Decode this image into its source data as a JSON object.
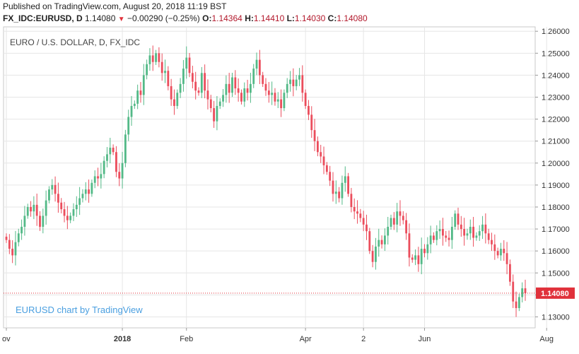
{
  "header": {
    "published": "Published on TradingView.com, August 20, 2018 11:19 BST",
    "symbol": "FX_IDC:EURUSD, D",
    "last": "1.14080",
    "change": "−0.00290 (−0.25%)",
    "o_label": "O:",
    "o": "1.14364",
    "h_label": "H:",
    "h": "1.14410",
    "l_label": "L:",
    "l": "1.14030",
    "c_label": "C:",
    "c": "1.14080"
  },
  "colors": {
    "up": "#53b987",
    "down": "#eb4d5c",
    "grid": "#e6e6e6",
    "price_tag": "#e0313b",
    "watermark": "#4a9fe0"
  },
  "chart_data": {
    "type": "candlestick",
    "title": "EURO / U.S. DOLLAR, D, FX_IDC",
    "watermark": "EURUSD chart by TradingView",
    "ylim": [
      1.125,
      1.262
    ],
    "y_ticks": [
      "1.26000",
      "1.25000",
      "1.24000",
      "1.23000",
      "1.22000",
      "1.21000",
      "1.20000",
      "1.19000",
      "1.18000",
      "1.17000",
      "1.16000",
      "1.15000",
      "1.14000",
      "1.13000"
    ],
    "x_ticks": [
      {
        "label": "ov",
        "i": 0
      },
      {
        "label": "2018",
        "i": 38
      },
      {
        "label": "Feb",
        "i": 59
      },
      {
        "label": "Apr",
        "i": 98
      },
      {
        "label": "2",
        "i": 117
      },
      {
        "label": "Jun",
        "i": 137
      },
      {
        "label": "Aug",
        "i": 177
      }
    ],
    "last_price": 1.1408,
    "last_price_label": "1.14080",
    "close": [
      1.165,
      1.161,
      1.158,
      1.164,
      1.168,
      1.171,
      1.176,
      1.18,
      1.178,
      1.181,
      1.176,
      1.171,
      1.176,
      1.183,
      1.188,
      1.19,
      1.186,
      1.182,
      1.179,
      1.176,
      1.174,
      1.176,
      1.179,
      1.181,
      1.184,
      1.186,
      1.188,
      1.186,
      1.191,
      1.194,
      1.193,
      1.195,
      1.201,
      1.204,
      1.207,
      1.205,
      1.196,
      1.193,
      1.2,
      1.213,
      1.221,
      1.226,
      1.227,
      1.233,
      1.231,
      1.24,
      1.245,
      1.249,
      1.246,
      1.25,
      1.246,
      1.241,
      1.242,
      1.235,
      1.229,
      1.226,
      1.232,
      1.236,
      1.243,
      1.248,
      1.241,
      1.237,
      1.233,
      1.232,
      1.241,
      1.233,
      1.229,
      1.225,
      1.219,
      1.226,
      1.228,
      1.231,
      1.236,
      1.232,
      1.239,
      1.234,
      1.232,
      1.228,
      1.234,
      1.232,
      1.236,
      1.243,
      1.247,
      1.24,
      1.236,
      1.233,
      1.231,
      1.232,
      1.228,
      1.229,
      1.225,
      1.232,
      1.236,
      1.238,
      1.235,
      1.238,
      1.24,
      1.232,
      1.226,
      1.222,
      1.215,
      1.21,
      1.205,
      1.203,
      1.199,
      1.196,
      1.192,
      1.186,
      1.187,
      1.184,
      1.191,
      1.194,
      1.186,
      1.18,
      1.178,
      1.177,
      1.175,
      1.172,
      1.169,
      1.16,
      1.155,
      1.162,
      1.165,
      1.163,
      1.167,
      1.171,
      1.175,
      1.172,
      1.178,
      1.176,
      1.174,
      1.168,
      1.157,
      1.156,
      1.158,
      1.154,
      1.161,
      1.159,
      1.163,
      1.167,
      1.165,
      1.169,
      1.17,
      1.167,
      1.166,
      1.165,
      1.171,
      1.177,
      1.172,
      1.17,
      1.167,
      1.168,
      1.171,
      1.166,
      1.167,
      1.169,
      1.172,
      1.168,
      1.165,
      1.163,
      1.16,
      1.158,
      1.161,
      1.159,
      1.154,
      1.146,
      1.137,
      1.134,
      1.139,
      1.143,
      1.1408
    ]
  }
}
